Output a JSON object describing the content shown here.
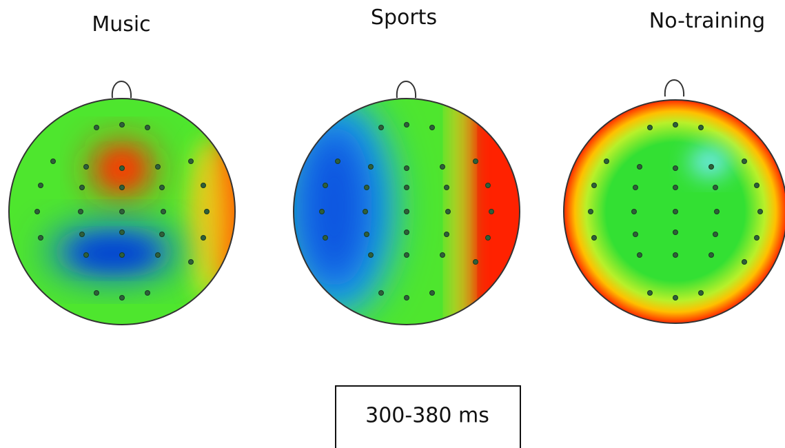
{
  "panels": [
    {
      "title": "Music"
    },
    {
      "title": "Sports"
    },
    {
      "title": "No-training"
    }
  ],
  "time_window": "300-380 ms"
}
